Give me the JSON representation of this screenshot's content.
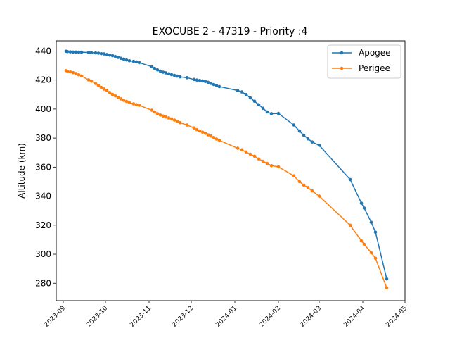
{
  "chart_data": {
    "type": "line",
    "title": "EXOCUBE 2 - 47319 - Priority :4",
    "xlabel": "",
    "ylabel": "Altitude (km)",
    "x_axis_type": "date",
    "xlim": [
      "2023-08-27",
      "2024-05-01"
    ],
    "ylim": [
      268,
      447
    ],
    "x_ticks": [
      "2023-09-01",
      "2023-10-01",
      "2023-11-01",
      "2023-12-01",
      "2024-01-01",
      "2024-02-01",
      "2024-03-01",
      "2024-04-01",
      "2024-05-01"
    ],
    "x_tick_labels": [
      "2023-09",
      "2023-10",
      "2023-11",
      "2023-12",
      "2024-01",
      "2024-02",
      "2024-03",
      "2024-04",
      "2024-05"
    ],
    "y_ticks": [
      280,
      300,
      320,
      340,
      360,
      380,
      400,
      420,
      440
    ],
    "grid": false,
    "legend_position": "top-right",
    "series": [
      {
        "name": "Apogee",
        "color": "#1f77b4",
        "x": [
          "2023-09-03",
          "2023-09-04",
          "2023-09-06",
          "2023-09-08",
          "2023-09-10",
          "2023-09-12",
          "2023-09-14",
          "2023-09-19",
          "2023-09-21",
          "2023-09-24",
          "2023-09-26",
          "2023-09-28",
          "2023-09-30",
          "2023-10-02",
          "2023-10-04",
          "2023-10-06",
          "2023-10-08",
          "2023-10-10",
          "2023-10-12",
          "2023-10-14",
          "2023-10-16",
          "2023-10-18",
          "2023-10-21",
          "2023-10-23",
          "2023-10-25",
          "2023-11-03",
          "2023-11-05",
          "2023-11-07",
          "2023-11-09",
          "2023-11-11",
          "2023-11-13",
          "2023-11-15",
          "2023-11-17",
          "2023-11-19",
          "2023-11-21",
          "2023-11-23",
          "2023-11-28",
          "2023-12-03",
          "2023-12-05",
          "2023-12-07",
          "2023-12-09",
          "2023-12-11",
          "2023-12-13",
          "2023-12-15",
          "2023-12-17",
          "2023-12-19",
          "2023-12-21",
          "2024-01-03",
          "2024-01-06",
          "2024-01-09",
          "2024-01-12",
          "2024-01-15",
          "2024-01-18",
          "2024-01-21",
          "2024-01-24",
          "2024-01-27",
          "2024-02-01",
          "2024-02-12",
          "2024-02-16",
          "2024-02-19",
          "2024-02-22",
          "2024-02-25",
          "2024-03-01",
          "2024-03-23",
          "2024-03-31",
          "2024-04-02",
          "2024-04-07",
          "2024-04-10",
          "2024-04-18"
        ],
        "y": [
          439.8,
          439.6,
          439.4,
          439.3,
          439.3,
          439.2,
          439.2,
          439.0,
          438.9,
          438.7,
          438.5,
          438.2,
          438.0,
          437.6,
          437.2,
          436.8,
          436.2,
          435.6,
          435.0,
          434.4,
          433.8,
          433.3,
          432.9,
          432.5,
          432.0,
          429.2,
          428.0,
          427.0,
          426.1,
          425.4,
          424.9,
          424.3,
          423.7,
          423.2,
          422.7,
          422.2,
          421.6,
          420.4,
          420.0,
          419.7,
          419.4,
          419.0,
          418.4,
          417.7,
          416.9,
          416.2,
          415.5,
          412.8,
          411.8,
          410.0,
          407.7,
          405.4,
          403.0,
          400.5,
          398.0,
          396.8,
          397.0,
          389.0,
          384.8,
          382.0,
          379.5,
          377.3,
          375.0,
          351.5,
          335.2,
          331.8,
          322.0,
          315.2,
          283.0
        ]
      },
      {
        "name": "Perigee",
        "color": "#ff7f0e",
        "x": [
          "2023-09-03",
          "2023-09-04",
          "2023-09-06",
          "2023-09-08",
          "2023-09-10",
          "2023-09-12",
          "2023-09-14",
          "2023-09-19",
          "2023-09-21",
          "2023-09-24",
          "2023-09-26",
          "2023-09-28",
          "2023-09-30",
          "2023-10-02",
          "2023-10-04",
          "2023-10-06",
          "2023-10-08",
          "2023-10-10",
          "2023-10-12",
          "2023-10-14",
          "2023-10-16",
          "2023-10-18",
          "2023-10-21",
          "2023-10-23",
          "2023-10-25",
          "2023-11-03",
          "2023-11-05",
          "2023-11-07",
          "2023-11-09",
          "2023-11-11",
          "2023-11-13",
          "2023-11-15",
          "2023-11-17",
          "2023-11-19",
          "2023-11-21",
          "2023-11-23",
          "2023-11-28",
          "2023-12-03",
          "2023-12-05",
          "2023-12-07",
          "2023-12-09",
          "2023-12-11",
          "2023-12-13",
          "2023-12-15",
          "2023-12-17",
          "2023-12-19",
          "2023-12-21",
          "2024-01-03",
          "2024-01-06",
          "2024-01-09",
          "2024-01-12",
          "2024-01-15",
          "2024-01-18",
          "2024-01-21",
          "2024-01-24",
          "2024-01-27",
          "2024-02-01",
          "2024-02-12",
          "2024-02-16",
          "2024-02-19",
          "2024-02-22",
          "2024-02-25",
          "2024-03-01",
          "2024-03-23",
          "2024-03-31",
          "2024-04-02",
          "2024-04-07",
          "2024-04-10",
          "2024-04-18"
        ],
        "y": [
          426.5,
          426.0,
          425.6,
          425.1,
          424.5,
          423.6,
          422.8,
          420.1,
          419.2,
          417.6,
          416.2,
          414.9,
          413.8,
          412.9,
          411.4,
          410.1,
          409.1,
          408.0,
          407.0,
          406.0,
          405.2,
          404.4,
          403.6,
          403.0,
          402.6,
          399.2,
          398.0,
          396.8,
          395.9,
          395.2,
          394.5,
          393.9,
          393.2,
          392.4,
          391.5,
          390.6,
          389.0,
          387.0,
          385.8,
          384.9,
          384.1,
          383.3,
          382.2,
          381.4,
          380.4,
          379.3,
          378.4,
          373.0,
          371.9,
          370.4,
          368.9,
          367.5,
          365.6,
          364.0,
          362.5,
          361.0,
          360.2,
          354.0,
          350.0,
          347.6,
          345.9,
          343.6,
          340.0,
          320.0,
          309.2,
          306.8,
          301.0,
          297.2,
          276.8
        ]
      }
    ]
  }
}
